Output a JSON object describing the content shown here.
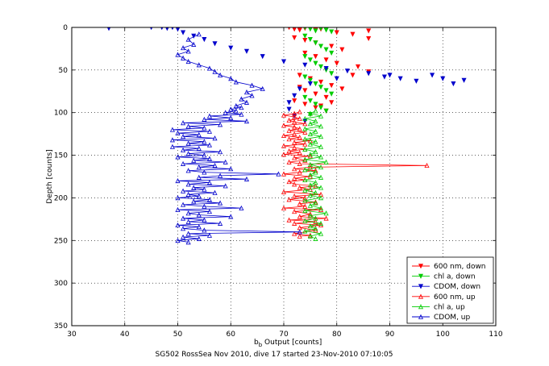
{
  "chart_data": {
    "type": "scatter",
    "xlabel_main": "b",
    "xlabel_sub": "b",
    "xlabel_rest": " Output [counts]",
    "ylabel": "Depth [counts]",
    "caption": "SG502 RossSea Nov 2010, dive 17 started 23-Nov-2010 07:10:05",
    "xlim": [
      30,
      110
    ],
    "ylim": [
      0,
      350
    ],
    "y_reversed": true,
    "grid": true,
    "legend_position": "bottom-right",
    "xticks": [
      30,
      40,
      50,
      60,
      70,
      80,
      90,
      100,
      110
    ],
    "yticks": [
      0,
      50,
      100,
      150,
      200,
      250,
      300,
      350
    ],
    "series": [
      {
        "name": "600 nm, down",
        "color": "#ff0000",
        "marker": "triangle-down",
        "line": false,
        "points": [
          [
            71,
            0
          ],
          [
            72,
            2
          ],
          [
            73,
            3
          ],
          [
            74,
            1
          ],
          [
            75,
            0
          ],
          [
            76,
            3
          ],
          [
            77,
            2
          ],
          [
            78,
            0
          ],
          [
            80,
            6
          ],
          [
            83,
            8
          ],
          [
            86,
            4
          ],
          [
            86,
            13
          ],
          [
            72,
            12
          ],
          [
            74,
            15
          ],
          [
            76,
            18
          ],
          [
            79,
            22
          ],
          [
            81,
            26
          ],
          [
            74,
            30
          ],
          [
            76,
            34
          ],
          [
            78,
            38
          ],
          [
            80,
            42
          ],
          [
            84,
            46
          ],
          [
            86,
            52
          ],
          [
            73,
            56
          ],
          [
            75,
            60
          ],
          [
            77,
            64
          ],
          [
            79,
            68
          ],
          [
            81,
            72
          ],
          [
            83,
            56
          ],
          [
            74,
            74
          ],
          [
            76,
            78
          ],
          [
            78,
            82
          ],
          [
            72,
            86
          ],
          [
            74,
            90
          ],
          [
            76,
            94
          ],
          [
            78,
            98
          ],
          [
            75,
            102
          ],
          [
            77,
            92
          ],
          [
            79,
            88
          ],
          [
            73,
            70
          ]
        ]
      },
      {
        "name": "chl a, down",
        "color": "#00cc00",
        "marker": "triangle-down",
        "line": false,
        "points": [
          [
            74,
            0
          ],
          [
            75,
            2
          ],
          [
            76,
            4
          ],
          [
            77,
            1
          ],
          [
            78,
            3
          ],
          [
            79,
            5
          ],
          [
            74,
            10
          ],
          [
            75,
            14
          ],
          [
            76,
            18
          ],
          [
            77,
            22
          ],
          [
            78,
            26
          ],
          [
            79,
            30
          ],
          [
            74,
            34
          ],
          [
            75,
            38
          ],
          [
            76,
            42
          ],
          [
            77,
            46
          ],
          [
            78,
            50
          ],
          [
            79,
            54
          ],
          [
            74,
            58
          ],
          [
            75,
            62
          ],
          [
            76,
            66
          ],
          [
            77,
            70
          ],
          [
            78,
            74
          ],
          [
            79,
            78
          ],
          [
            74,
            82
          ],
          [
            75,
            86
          ],
          [
            76,
            90
          ],
          [
            77,
            94
          ],
          [
            78,
            98
          ],
          [
            75,
            102
          ]
        ]
      },
      {
        "name": "CDOM, down",
        "color": "#0000cc",
        "marker": "triangle-down",
        "line": false,
        "points": [
          [
            37,
            1
          ],
          [
            45,
            0
          ],
          [
            47,
            0
          ],
          [
            48,
            1
          ],
          [
            49,
            0
          ],
          [
            50,
            2
          ],
          [
            51,
            6
          ],
          [
            53,
            10
          ],
          [
            55,
            14
          ],
          [
            57,
            19
          ],
          [
            60,
            24
          ],
          [
            63,
            28
          ],
          [
            66,
            34
          ],
          [
            70,
            40
          ],
          [
            74,
            44
          ],
          [
            78,
            48
          ],
          [
            82,
            51
          ],
          [
            86,
            54
          ],
          [
            89,
            58
          ],
          [
            92,
            60
          ],
          [
            95,
            63
          ],
          [
            98,
            56
          ],
          [
            100,
            60
          ],
          [
            102,
            66
          ],
          [
            104,
            62
          ],
          [
            90,
            56
          ],
          [
            80,
            60
          ],
          [
            75,
            66
          ],
          [
            73,
            72
          ],
          [
            72,
            80
          ],
          [
            71,
            88
          ],
          [
            71,
            96
          ],
          [
            72,
            104
          ],
          [
            74,
            110
          ]
        ]
      },
      {
        "name": "600 nm, up",
        "color": "#ff0000",
        "marker": "triangle-up",
        "line": true,
        "points": [
          [
            73,
            245
          ],
          [
            75,
            244
          ],
          [
            72,
            242
          ],
          [
            76,
            238
          ],
          [
            73,
            235
          ],
          [
            77,
            232
          ],
          [
            72,
            230
          ],
          [
            76,
            228
          ],
          [
            71,
            226
          ],
          [
            78,
            224
          ],
          [
            73,
            222
          ],
          [
            75,
            219
          ],
          [
            72,
            216
          ],
          [
            77,
            214
          ],
          [
            70,
            212
          ],
          [
            74,
            210
          ],
          [
            73,
            207
          ],
          [
            76,
            205
          ],
          [
            71,
            202
          ],
          [
            74,
            200
          ],
          [
            72,
            198
          ],
          [
            77,
            196
          ],
          [
            70,
            193
          ],
          [
            75,
            190
          ],
          [
            73,
            188
          ],
          [
            76,
            186
          ],
          [
            72,
            184
          ],
          [
            71,
            181
          ],
          [
            74,
            179
          ],
          [
            72,
            177
          ],
          [
            75,
            175
          ],
          [
            70,
            172
          ],
          [
            73,
            170
          ],
          [
            76,
            168
          ],
          [
            72,
            166
          ],
          [
            75,
            164
          ],
          [
            97,
            162
          ],
          [
            73,
            160
          ],
          [
            71,
            158
          ],
          [
            74,
            156
          ],
          [
            72,
            153
          ],
          [
            75,
            151
          ],
          [
            70,
            149
          ],
          [
            73,
            147
          ],
          [
            71,
            145
          ],
          [
            74,
            143
          ],
          [
            72,
            141
          ],
          [
            70,
            139
          ],
          [
            74,
            137
          ],
          [
            72,
            135
          ],
          [
            75,
            133
          ],
          [
            71,
            131
          ],
          [
            73,
            129
          ],
          [
            70,
            127
          ],
          [
            72,
            125
          ],
          [
            74,
            123
          ],
          [
            71,
            121
          ],
          [
            73,
            119
          ],
          [
            72,
            117
          ],
          [
            70,
            115
          ],
          [
            74,
            113
          ],
          [
            72,
            111
          ],
          [
            71,
            109
          ],
          [
            73,
            107
          ],
          [
            72,
            105
          ],
          [
            70,
            103
          ],
          [
            72,
            101
          ],
          [
            73,
            99
          ]
        ]
      },
      {
        "name": "chl a, up",
        "color": "#00cc00",
        "marker": "triangle-up",
        "line": true,
        "points": [
          [
            76,
            248
          ],
          [
            75,
            245
          ],
          [
            77,
            242
          ],
          [
            74,
            239
          ],
          [
            76,
            236
          ],
          [
            75,
            233
          ],
          [
            77,
            230
          ],
          [
            74,
            227
          ],
          [
            76,
            224
          ],
          [
            75,
            221
          ],
          [
            78,
            218
          ],
          [
            74,
            215
          ],
          [
            77,
            212
          ],
          [
            75,
            209
          ],
          [
            76,
            206
          ],
          [
            74,
            203
          ],
          [
            77,
            200
          ],
          [
            75,
            197
          ],
          [
            76,
            194
          ],
          [
            74,
            191
          ],
          [
            77,
            188
          ],
          [
            75,
            185
          ],
          [
            76,
            182
          ],
          [
            74,
            179
          ],
          [
            77,
            176
          ],
          [
            75,
            173
          ],
          [
            76,
            170
          ],
          [
            74,
            167
          ],
          [
            77,
            164
          ],
          [
            75,
            161
          ],
          [
            78,
            158
          ],
          [
            74,
            155
          ],
          [
            77,
            152
          ],
          [
            75,
            149
          ],
          [
            76,
            146
          ],
          [
            74,
            143
          ],
          [
            77,
            140
          ],
          [
            75,
            137
          ],
          [
            76,
            134
          ],
          [
            74,
            131
          ],
          [
            77,
            128
          ],
          [
            75,
            125
          ],
          [
            76,
            122
          ],
          [
            74,
            119
          ],
          [
            77,
            116
          ],
          [
            75,
            113
          ],
          [
            76,
            110
          ],
          [
            74,
            107
          ],
          [
            77,
            104
          ],
          [
            75,
            101
          ],
          [
            76,
            98
          ]
        ]
      },
      {
        "name": "CDOM, up",
        "color": "#0000cc",
        "marker": "triangle-up",
        "line": true,
        "points": [
          [
            52,
            252
          ],
          [
            50,
            250
          ],
          [
            54,
            248
          ],
          [
            51,
            246
          ],
          [
            56,
            244
          ],
          [
            52,
            242
          ],
          [
            73,
            240
          ],
          [
            55,
            238
          ],
          [
            51,
            236
          ],
          [
            54,
            234
          ],
          [
            50,
            232
          ],
          [
            58,
            230
          ],
          [
            52,
            228
          ],
          [
            55,
            226
          ],
          [
            51,
            224
          ],
          [
            60,
            222
          ],
          [
            54,
            220
          ],
          [
            52,
            218
          ],
          [
            56,
            216
          ],
          [
            50,
            214
          ],
          [
            62,
            212
          ],
          [
            55,
            210
          ],
          [
            51,
            208
          ],
          [
            58,
            206
          ],
          [
            53,
            204
          ],
          [
            56,
            202
          ],
          [
            50,
            200
          ],
          [
            54,
            198
          ],
          [
            52,
            196
          ],
          [
            57,
            194
          ],
          [
            51,
            192
          ],
          [
            55,
            190
          ],
          [
            53,
            188
          ],
          [
            59,
            186
          ],
          [
            52,
            184
          ],
          [
            56,
            182
          ],
          [
            50,
            180
          ],
          [
            63,
            178
          ],
          [
            54,
            176
          ],
          [
            58,
            174
          ],
          [
            69,
            172
          ],
          [
            55,
            170
          ],
          [
            52,
            168
          ],
          [
            60,
            166
          ],
          [
            54,
            164
          ],
          [
            57,
            162
          ],
          [
            51,
            160
          ],
          [
            59,
            158
          ],
          [
            53,
            156
          ],
          [
            56,
            154
          ],
          [
            50,
            152
          ],
          [
            55,
            150
          ],
          [
            52,
            148
          ],
          [
            58,
            146
          ],
          [
            51,
            144
          ],
          [
            54,
            142
          ],
          [
            49,
            140
          ],
          [
            56,
            138
          ],
          [
            52,
            136
          ],
          [
            55,
            134
          ],
          [
            49,
            132
          ],
          [
            57,
            130
          ],
          [
            51,
            128
          ],
          [
            54,
            126
          ],
          [
            50,
            124
          ],
          [
            56,
            122
          ],
          [
            49,
            120
          ],
          [
            55,
            118
          ],
          [
            52,
            116
          ],
          [
            58,
            114
          ],
          [
            51,
            112
          ],
          [
            63,
            110
          ],
          [
            55,
            108
          ],
          [
            60,
            106
          ],
          [
            56,
            104
          ],
          [
            62,
            102
          ],
          [
            59,
            100
          ],
          [
            61,
            98
          ],
          [
            60,
            96
          ],
          [
            62,
            94
          ],
          [
            61,
            92
          ],
          [
            63,
            88
          ],
          [
            62,
            84
          ],
          [
            64,
            80
          ],
          [
            63,
            76
          ],
          [
            66,
            72
          ],
          [
            64,
            68
          ],
          [
            61,
            64
          ],
          [
            60,
            60
          ],
          [
            58,
            56
          ],
          [
            57,
            52
          ],
          [
            56,
            48
          ],
          [
            54,
            44
          ],
          [
            52,
            40
          ],
          [
            51,
            36
          ],
          [
            50,
            32
          ],
          [
            52,
            28
          ],
          [
            51,
            24
          ],
          [
            53,
            20
          ],
          [
            52,
            14
          ],
          [
            54,
            8
          ]
        ]
      }
    ]
  }
}
